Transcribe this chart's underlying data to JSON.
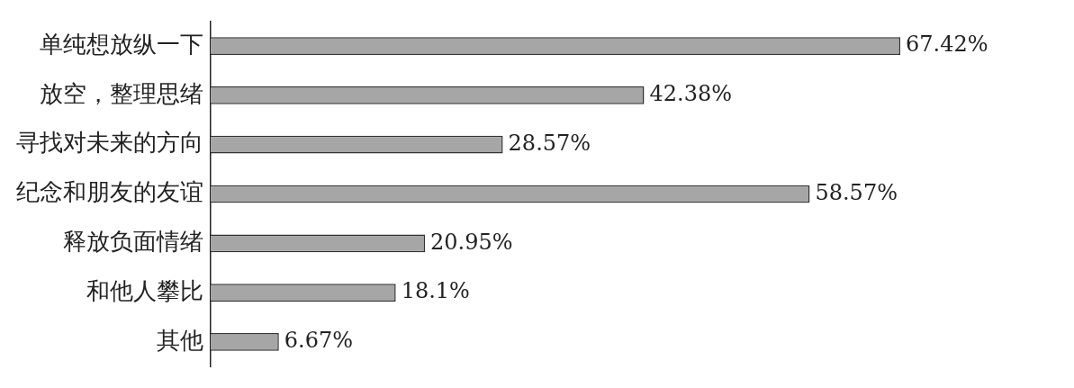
{
  "chart_data": {
    "type": "bar",
    "orientation": "horizontal",
    "categories": [
      "单纯想放纵一下",
      "放空，整理思绪",
      "寻找对未来的方向",
      "纪念和朋友的友谊",
      "释放负面情绪",
      "和他人攀比",
      "其他"
    ],
    "values": [
      67.42,
      42.38,
      28.57,
      58.57,
      20.95,
      18.1,
      6.67
    ],
    "value_labels": [
      "67.42%",
      "42.38%",
      "28.57%",
      "58.57%",
      "20.95%",
      "18.1%",
      "6.67%"
    ],
    "color": "#a6a6a6"
  }
}
